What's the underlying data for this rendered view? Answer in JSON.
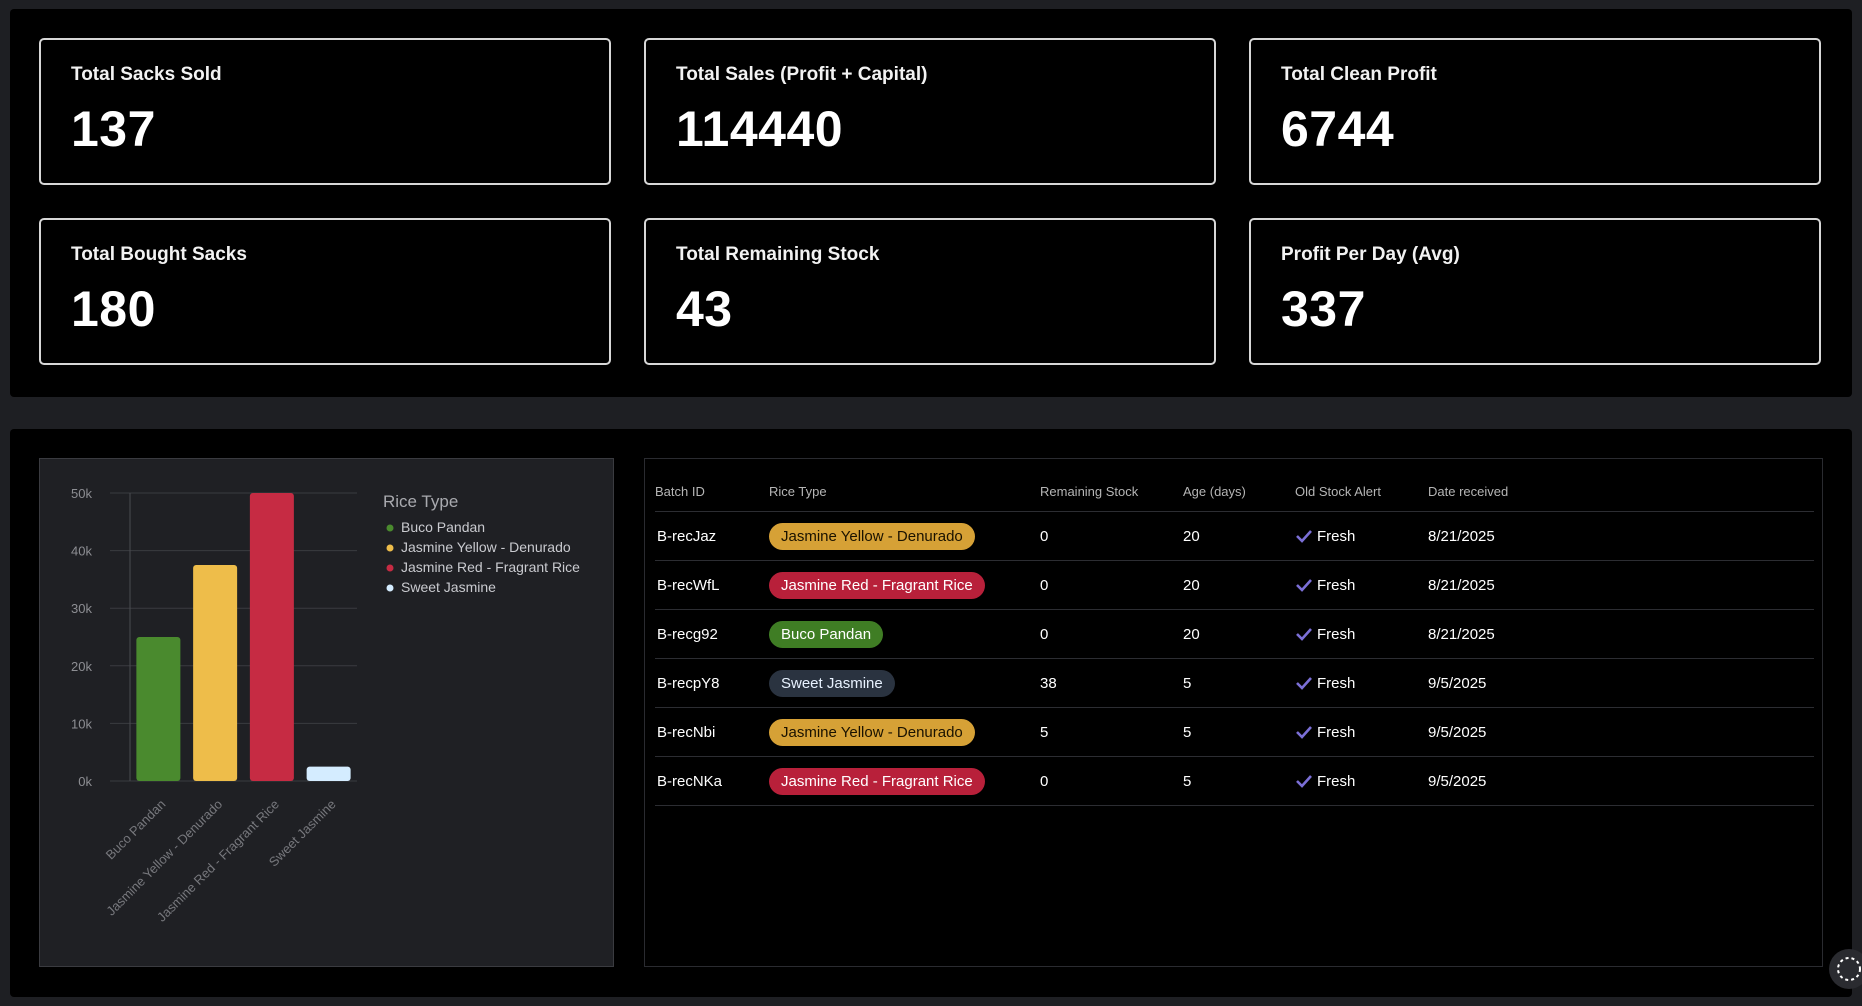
{
  "stats": [
    {
      "label": "Total Sacks Sold",
      "value": "137"
    },
    {
      "label": "Total Sales (Profit + Capital)",
      "value": "114440"
    },
    {
      "label": "Total Clean Profit",
      "value": "6744"
    },
    {
      "label": "Total Bought Sacks",
      "value": "180"
    },
    {
      "label": "Total Remaining Stock",
      "value": "43"
    },
    {
      "label": "Profit Per Day (Avg)",
      "value": "337"
    }
  ],
  "chart_data": {
    "type": "bar",
    "categories": [
      "Buco Pandan",
      "Jasmine Yellow - Denurado",
      "Jasmine Red - Fragrant Rice",
      "Sweet Jasmine"
    ],
    "values": [
      25000,
      37500,
      50000,
      2500
    ],
    "colors": [
      "#4a8a2e",
      "#eebd4a",
      "#c62b43",
      "#d4ecff"
    ],
    "ylim": [
      0,
      50000
    ],
    "yticks": [
      "0k",
      "10k",
      "20k",
      "30k",
      "40k",
      "50k"
    ],
    "legend_title": "Rice Type",
    "legend": [
      "Buco Pandan",
      "Jasmine Yellow - Denurado",
      "Jasmine Red - Fragrant Rice",
      "Sweet Jasmine"
    ],
    "legend_position": "top-right",
    "grid": true
  },
  "table": {
    "headers": [
      "Batch ID",
      "Rice Type",
      "Remaining Stock",
      "Age (days)",
      "Old Stock Alert",
      "Date received"
    ],
    "rows": [
      {
        "id": "B-recJaz",
        "type": "Jasmine Yellow - Denurado",
        "stock": "0",
        "age": "20",
        "alert": "Fresh",
        "date": "8/21/2025"
      },
      {
        "id": "B-recWfL",
        "type": "Jasmine Red - Fragrant Rice",
        "stock": "0",
        "age": "20",
        "alert": "Fresh",
        "date": "8/21/2025"
      },
      {
        "id": "B-recg92",
        "type": "Buco Pandan",
        "stock": "0",
        "age": "20",
        "alert": "Fresh",
        "date": "8/21/2025"
      },
      {
        "id": "B-recpY8",
        "type": "Sweet Jasmine",
        "stock": "38",
        "age": "5",
        "alert": "Fresh",
        "date": "9/5/2025"
      },
      {
        "id": "B-recNbi",
        "type": "Jasmine Yellow - Denurado",
        "stock": "5",
        "age": "5",
        "alert": "Fresh",
        "date": "9/5/2025"
      },
      {
        "id": "B-recNKa",
        "type": "Jasmine Red - Fragrant Rice",
        "stock": "0",
        "age": "5",
        "alert": "Fresh",
        "date": "9/5/2025"
      }
    ]
  },
  "badge_colors": {
    "Jasmine Yellow - Denurado": {
      "bg": "#d6a136",
      "fg": "#1a1200"
    },
    "Jasmine Red - Fragrant Rice": {
      "bg": "#b8203a",
      "fg": "#ffffff"
    },
    "Buco Pandan": {
      "bg": "#3f7d24",
      "fg": "#ffffff"
    },
    "Sweet Jasmine": {
      "bg": "#2a3340",
      "fg": "#e8f2ff"
    }
  },
  "check_color": "#7b6fd6"
}
